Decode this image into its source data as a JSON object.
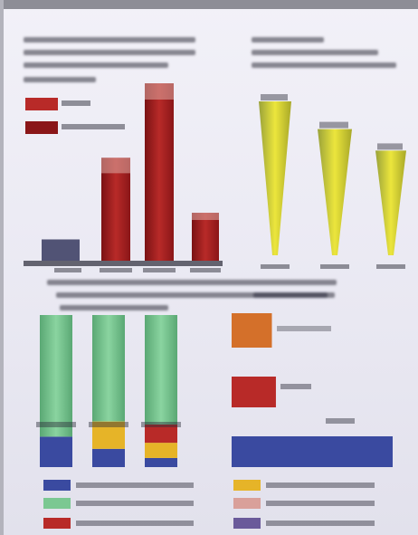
{
  "colors": {
    "red_dark": "#8a1618",
    "red": "#b82a28",
    "red_light": "#d9a09a",
    "yellow": "#e9e23a",
    "yellow_dark": "#b8b41a",
    "green": "#7bc892",
    "green_dark": "#4a9a66",
    "blue": "#3a4aa0",
    "orange": "#d4702a",
    "gold": "#e6b428",
    "purple": "#6a5a9a"
  },
  "chart_data": [
    {
      "type": "bar",
      "panel": "top-left",
      "legend_placement": "top-left",
      "series": [
        {
          "color_key": "red",
          "values": [
            12,
            58,
            100,
            27
          ]
        }
      ]
    },
    {
      "type": "bar",
      "panel": "top-right",
      "shape": "tapered",
      "series": [
        {
          "color_key": "yellow",
          "values": [
            100,
            82,
            68
          ]
        }
      ]
    },
    {
      "type": "bar",
      "panel": "bottom-left",
      "stacked": true,
      "series": [
        {
          "color_key": "blue",
          "values": [
            20,
            12,
            6
          ]
        },
        {
          "color_key": "gold",
          "values": [
            0,
            18,
            10
          ]
        },
        {
          "color_key": "red",
          "values": [
            0,
            0,
            12
          ]
        },
        {
          "color_key": "green",
          "values": [
            80,
            70,
            72
          ]
        }
      ]
    },
    {
      "type": "bar",
      "panel": "bottom-right",
      "orientation": "horizontal",
      "series": [
        {
          "color_key": "orange",
          "values": [
            20
          ]
        },
        {
          "color_key": "red",
          "values": [
            22
          ]
        },
        {
          "color_key": "blue",
          "values": [
            80
          ]
        }
      ]
    }
  ],
  "legend": {
    "left": [
      {
        "color_key": "blue"
      },
      {
        "color_key": "green"
      },
      {
        "color_key": "red"
      }
    ],
    "right": [
      {
        "color_key": "gold"
      },
      {
        "color_key": "red_light"
      },
      {
        "color_key": "purple"
      }
    ]
  }
}
